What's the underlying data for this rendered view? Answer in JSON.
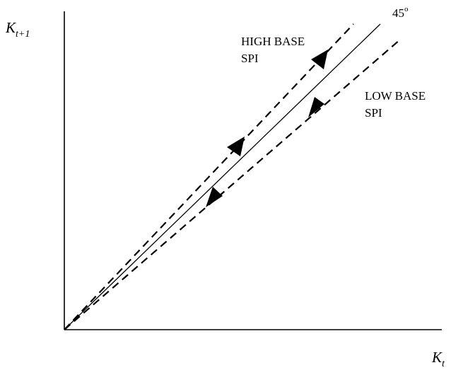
{
  "axes": {
    "y_label": {
      "main": "K",
      "sub": "t+1"
    },
    "x_label": {
      "main": "K",
      "sub": "t"
    }
  },
  "reference_line": {
    "label": "45",
    "superscript": "o"
  },
  "high_base": {
    "line1": "HIGH BASE",
    "line2": "SPI"
  },
  "low_base": {
    "line1": "LOW BASE",
    "line2": "SPI"
  },
  "colors": {
    "ink": "#000000",
    "background": "#ffffff"
  }
}
